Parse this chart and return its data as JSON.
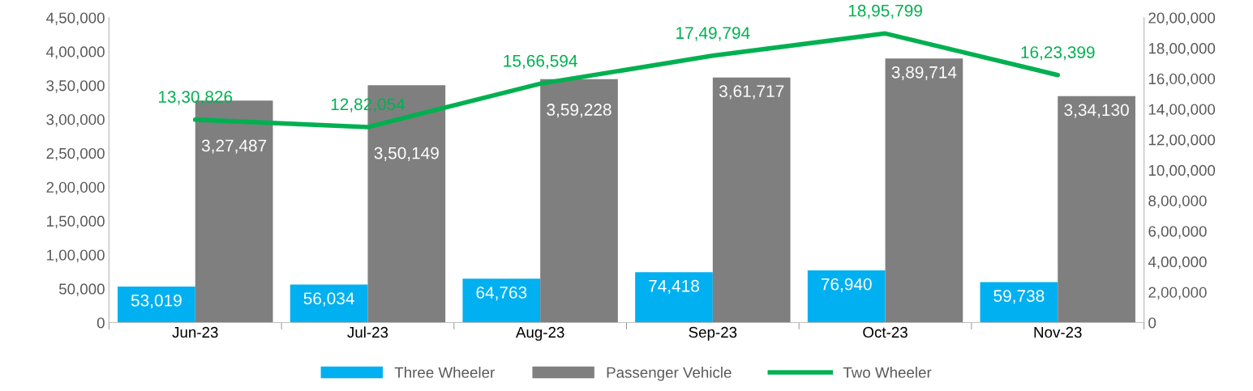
{
  "chart_data": {
    "type": "bar",
    "categories": [
      "Jun-23",
      "Jul-23",
      "Aug-23",
      "Sep-23",
      "Oct-23",
      "Nov-23"
    ],
    "series": [
      {
        "name": "Three Wheeler",
        "color": "#00b0f0",
        "values": [
          53019,
          56034,
          64763,
          74418,
          76940,
          59738
        ],
        "value_labels": [
          "53,019",
          "56,034",
          "64,763",
          "74,418",
          "76,940",
          "59,738"
        ]
      },
      {
        "name": "Passenger Vehicle",
        "color": "#7f7f7f",
        "values": [
          327487,
          350149,
          359228,
          361717,
          389714,
          334130
        ],
        "value_labels": [
          "3,27,487",
          "3,50,149",
          "3,59,228",
          "3,61,717",
          "3,89,714",
          "3,34,130"
        ]
      },
      {
        "name": "Two Wheeler",
        "type": "line",
        "axis": "y2",
        "color": "#00b050",
        "values": [
          1330826,
          1282054,
          1566594,
          1749794,
          1895799,
          1623399
        ],
        "value_labels": [
          "13,30,826",
          "12,82,054",
          "15,66,594",
          "17,49,794",
          "18,95,799",
          "16,23,399"
        ]
      }
    ],
    "ylim": [
      0,
      450000
    ],
    "yticks": [
      0,
      {
        "value": 50000,
        "label": "50,000"
      },
      {
        "value": 100000,
        "label": "1,00,000"
      },
      {
        "value": 150000,
        "label": "1,50,000"
      },
      {
        "value": 200000,
        "label": "2,00,000"
      },
      {
        "value": 250000,
        "label": "2,50,000"
      },
      {
        "value": 300000,
        "label": "3,00,000"
      },
      {
        "value": 350000,
        "label": "3,50,000"
      },
      {
        "value": 400000,
        "label": "4,00,000"
      },
      {
        "value": 450000,
        "label": "4,50,000"
      }
    ],
    "y2lim": [
      0,
      2000000
    ],
    "y2ticks": [
      0,
      {
        "value": 200000,
        "label": "2,00,000"
      },
      {
        "value": 400000,
        "label": "4,00,000"
      },
      {
        "value": 600000,
        "label": "6,00,000"
      },
      {
        "value": 800000,
        "label": "8,00,000"
      },
      {
        "value": 1000000,
        "label": "10,00,000"
      },
      {
        "value": 1200000,
        "label": "12,00,000"
      },
      {
        "value": 1400000,
        "label": "14,00,000"
      },
      {
        "value": 1600000,
        "label": "16,00,000"
      },
      {
        "value": 1800000,
        "label": "18,00,000"
      },
      {
        "value": 2000000,
        "label": "20,00,000"
      }
    ],
    "grid": false,
    "legend": "bottom",
    "marker": "none",
    "line_style": "solid"
  }
}
